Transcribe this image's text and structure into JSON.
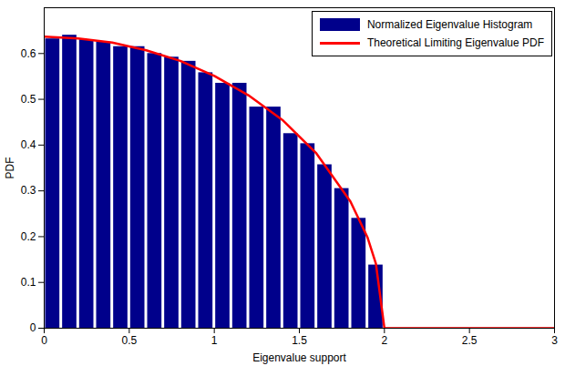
{
  "chart_data": {
    "type": "histogram",
    "x_label": "Eigenvalue support",
    "y_label": "PDF",
    "xlim": [
      0,
      3
    ],
    "ylim": [
      0,
      0.7
    ],
    "xticks": [
      0,
      0.5,
      1,
      1.5,
      2,
      2.5,
      3
    ],
    "yticks": [
      0,
      0.1,
      0.2,
      0.3,
      0.4,
      0.5,
      0.6
    ],
    "grid": false,
    "legend": "top-right",
    "series": [
      {
        "name": "Normalized Eigenvalue Histogram",
        "type": "histogram",
        "color": "#00008b",
        "bins": [
          0,
          0.1,
          0.2,
          0.3,
          0.4,
          0.5,
          0.6,
          0.7,
          0.8,
          0.9,
          1.0,
          1.1,
          1.2,
          1.3,
          1.4,
          1.5,
          1.6,
          1.7,
          1.8,
          1.9,
          2.0
        ],
        "values": [
          0.632,
          0.64,
          0.63,
          0.625,
          0.615,
          0.615,
          0.6,
          0.592,
          0.583,
          0.558,
          0.535,
          0.535,
          0.483,
          0.483,
          0.425,
          0.403,
          0.357,
          0.305,
          0.24,
          0.138
        ]
      },
      {
        "name": "Theoretical Limiting Eigenvalue PDF",
        "type": "line",
        "color": "#ff0000",
        "x": [
          0,
          0.2,
          0.4,
          0.6,
          0.8,
          1.0,
          1.2,
          1.4,
          1.6,
          1.8,
          1.9,
          1.95,
          2.0,
          3.0
        ],
        "values": [
          0.637,
          0.633,
          0.624,
          0.607,
          0.584,
          0.551,
          0.509,
          0.455,
          0.382,
          0.277,
          0.199,
          0.141,
          0,
          0
        ]
      }
    ]
  }
}
